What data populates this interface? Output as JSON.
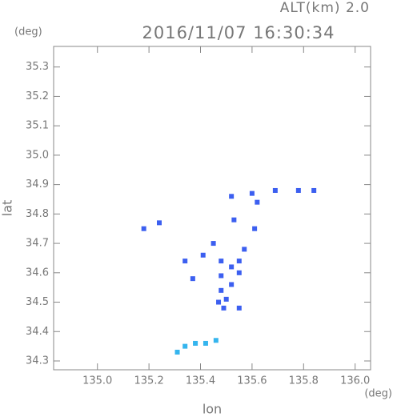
{
  "chart_data": {
    "type": "scatter",
    "title": "2016/11/07 16:30:34",
    "subtitle": "ALT(km) 2.0",
    "y_unit": "(deg)",
    "x_unit": "(deg)",
    "x_label": "lon",
    "y_label": "lat",
    "xlim": [
      134.83,
      136.06
    ],
    "ylim": [
      34.27,
      35.37
    ],
    "xticks": [
      {
        "value": 135,
        "label": "135.0"
      },
      135.2,
      135.4,
      135.6,
      135.8,
      {
        "value": 136,
        "label": "136.0"
      }
    ],
    "yticks": [
      34.3,
      34.4,
      34.5,
      34.6,
      34.7,
      34.8,
      34.9,
      {
        "value": 35,
        "label": "35.0"
      },
      35.1,
      35.2,
      35.3
    ],
    "grid": false,
    "series": [
      {
        "color": "#3c5ff0",
        "x": [
          135.18,
          135.24,
          135.52,
          135.53,
          135.6,
          135.69,
          135.78,
          135.84,
          135.62,
          135.61,
          135.57,
          135.45,
          135.34,
          135.41,
          135.48,
          135.52,
          135.55,
          135.48,
          135.52,
          135.48,
          135.5,
          135.47,
          135.55,
          135.37,
          135.55,
          135.49
        ],
        "y": [
          34.75,
          34.77,
          34.86,
          34.78,
          34.87,
          34.88,
          34.88,
          34.88,
          34.84,
          34.75,
          34.68,
          34.7,
          34.64,
          34.66,
          34.64,
          34.62,
          34.64,
          34.59,
          34.56,
          34.54,
          34.51,
          34.5,
          34.6,
          34.58,
          34.48,
          34.48
        ]
      },
      {
        "color": "#35b5ee",
        "x": [
          135.31,
          135.34,
          135.38,
          135.42,
          135.46
        ],
        "y": [
          34.33,
          34.35,
          34.36,
          34.36,
          34.37
        ]
      }
    ]
  }
}
